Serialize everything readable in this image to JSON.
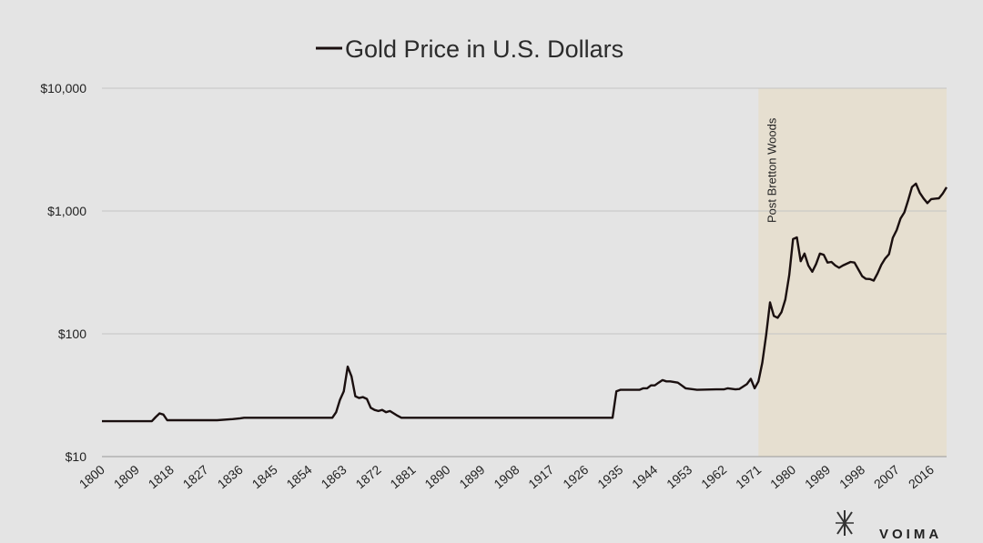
{
  "chart_data": {
    "type": "line",
    "title": "Gold Price in U.S. Dollars",
    "xlabel": "",
    "ylabel": "",
    "yscale": "log",
    "ylim": [
      10,
      10000
    ],
    "xlim": [
      1800,
      2020
    ],
    "grid": true,
    "legend": "inline-title",
    "y_ticks": [
      {
        "value": 10,
        "label": "$10"
      },
      {
        "value": 100,
        "label": "$100"
      },
      {
        "value": 1000,
        "label": "$1,000"
      },
      {
        "value": 10000,
        "label": "$10,000"
      }
    ],
    "x_ticks": [
      "1800",
      "1809",
      "1818",
      "1827",
      "1836",
      "1845",
      "1854",
      "1863",
      "1872",
      "1881",
      "1890",
      "1899",
      "1908",
      "1917",
      "1926",
      "1935",
      "1944",
      "1953",
      "1962",
      "1971",
      "1980",
      "1989",
      "1998",
      "2007",
      "2016"
    ],
    "shaded_region": {
      "x_start": 1971,
      "x_end": 2020,
      "label": "Post Bretton Woods",
      "color": "#e6dfd0"
    },
    "series": [
      {
        "name": "Gold Price in U.S. Dollars",
        "color": "#1a0f0f",
        "x": [
          1800,
          1813,
          1814,
          1815,
          1816,
          1817,
          1830,
          1834,
          1836,
          1837,
          1838,
          1860,
          1861,
          1862,
          1863,
          1864,
          1865,
          1866,
          1867,
          1868,
          1869,
          1870,
          1871,
          1872,
          1873,
          1874,
          1875,
          1876,
          1877,
          1878,
          1879,
          1933,
          1934,
          1935,
          1940,
          1941,
          1942,
          1943,
          1944,
          1945,
          1946,
          1947,
          1948,
          1950,
          1951,
          1952,
          1955,
          1960,
          1962,
          1963,
          1965,
          1966,
          1968,
          1969,
          1970,
          1971,
          1972,
          1973,
          1974,
          1975,
          1976,
          1977,
          1978,
          1979,
          1980,
          1981,
          1982,
          1983,
          1984,
          1985,
          1986,
          1987,
          1988,
          1989,
          1990,
          1991,
          1992,
          1993,
          1995,
          1996,
          1997,
          1998,
          1999,
          2000,
          2001,
          2002,
          2003,
          2004,
          2005,
          2006,
          2007,
          2008,
          2009,
          2010,
          2011,
          2012,
          2013,
          2014,
          2015,
          2016,
          2017,
          2018,
          2019,
          2020
        ],
        "values": [
          19.4,
          19.4,
          21.0,
          22.5,
          22.0,
          19.8,
          19.8,
          20.2,
          20.5,
          20.7,
          20.7,
          20.7,
          23.0,
          29.0,
          34.0,
          54.0,
          45.0,
          31.0,
          30.0,
          30.5,
          29.5,
          25.0,
          24.0,
          23.5,
          24.0,
          23.0,
          23.5,
          22.5,
          21.5,
          20.7,
          20.7,
          20.7,
          34.0,
          35.0,
          35.0,
          36.0,
          36.0,
          38.0,
          38.0,
          40.0,
          42.0,
          41.0,
          41.0,
          40.0,
          38.0,
          36.0,
          35.0,
          35.3,
          35.3,
          36.0,
          35.3,
          35.5,
          39.0,
          43.0,
          36.0,
          41.0,
          58.0,
          97.0,
          180.0,
          140.0,
          135.0,
          150.0,
          190.0,
          300.0,
          590.0,
          610.0,
          390.0,
          450.0,
          360.0,
          320.0,
          370.0,
          450.0,
          440.0,
          380.0,
          385.0,
          360.0,
          345.0,
          360.0,
          385.0,
          380.0,
          335.0,
          295.0,
          280.0,
          279.0,
          271.0,
          310.0,
          365.0,
          410.0,
          445.0,
          605.0,
          700.0,
          870.0,
          975.0,
          1225.0,
          1570.0,
          1670.0,
          1410.0,
          1265.0,
          1160.0,
          1250.0,
          1260.0,
          1270.0,
          1390.0,
          1560.0
        ]
      }
    ]
  },
  "brand": {
    "name": "VOIMA"
  }
}
